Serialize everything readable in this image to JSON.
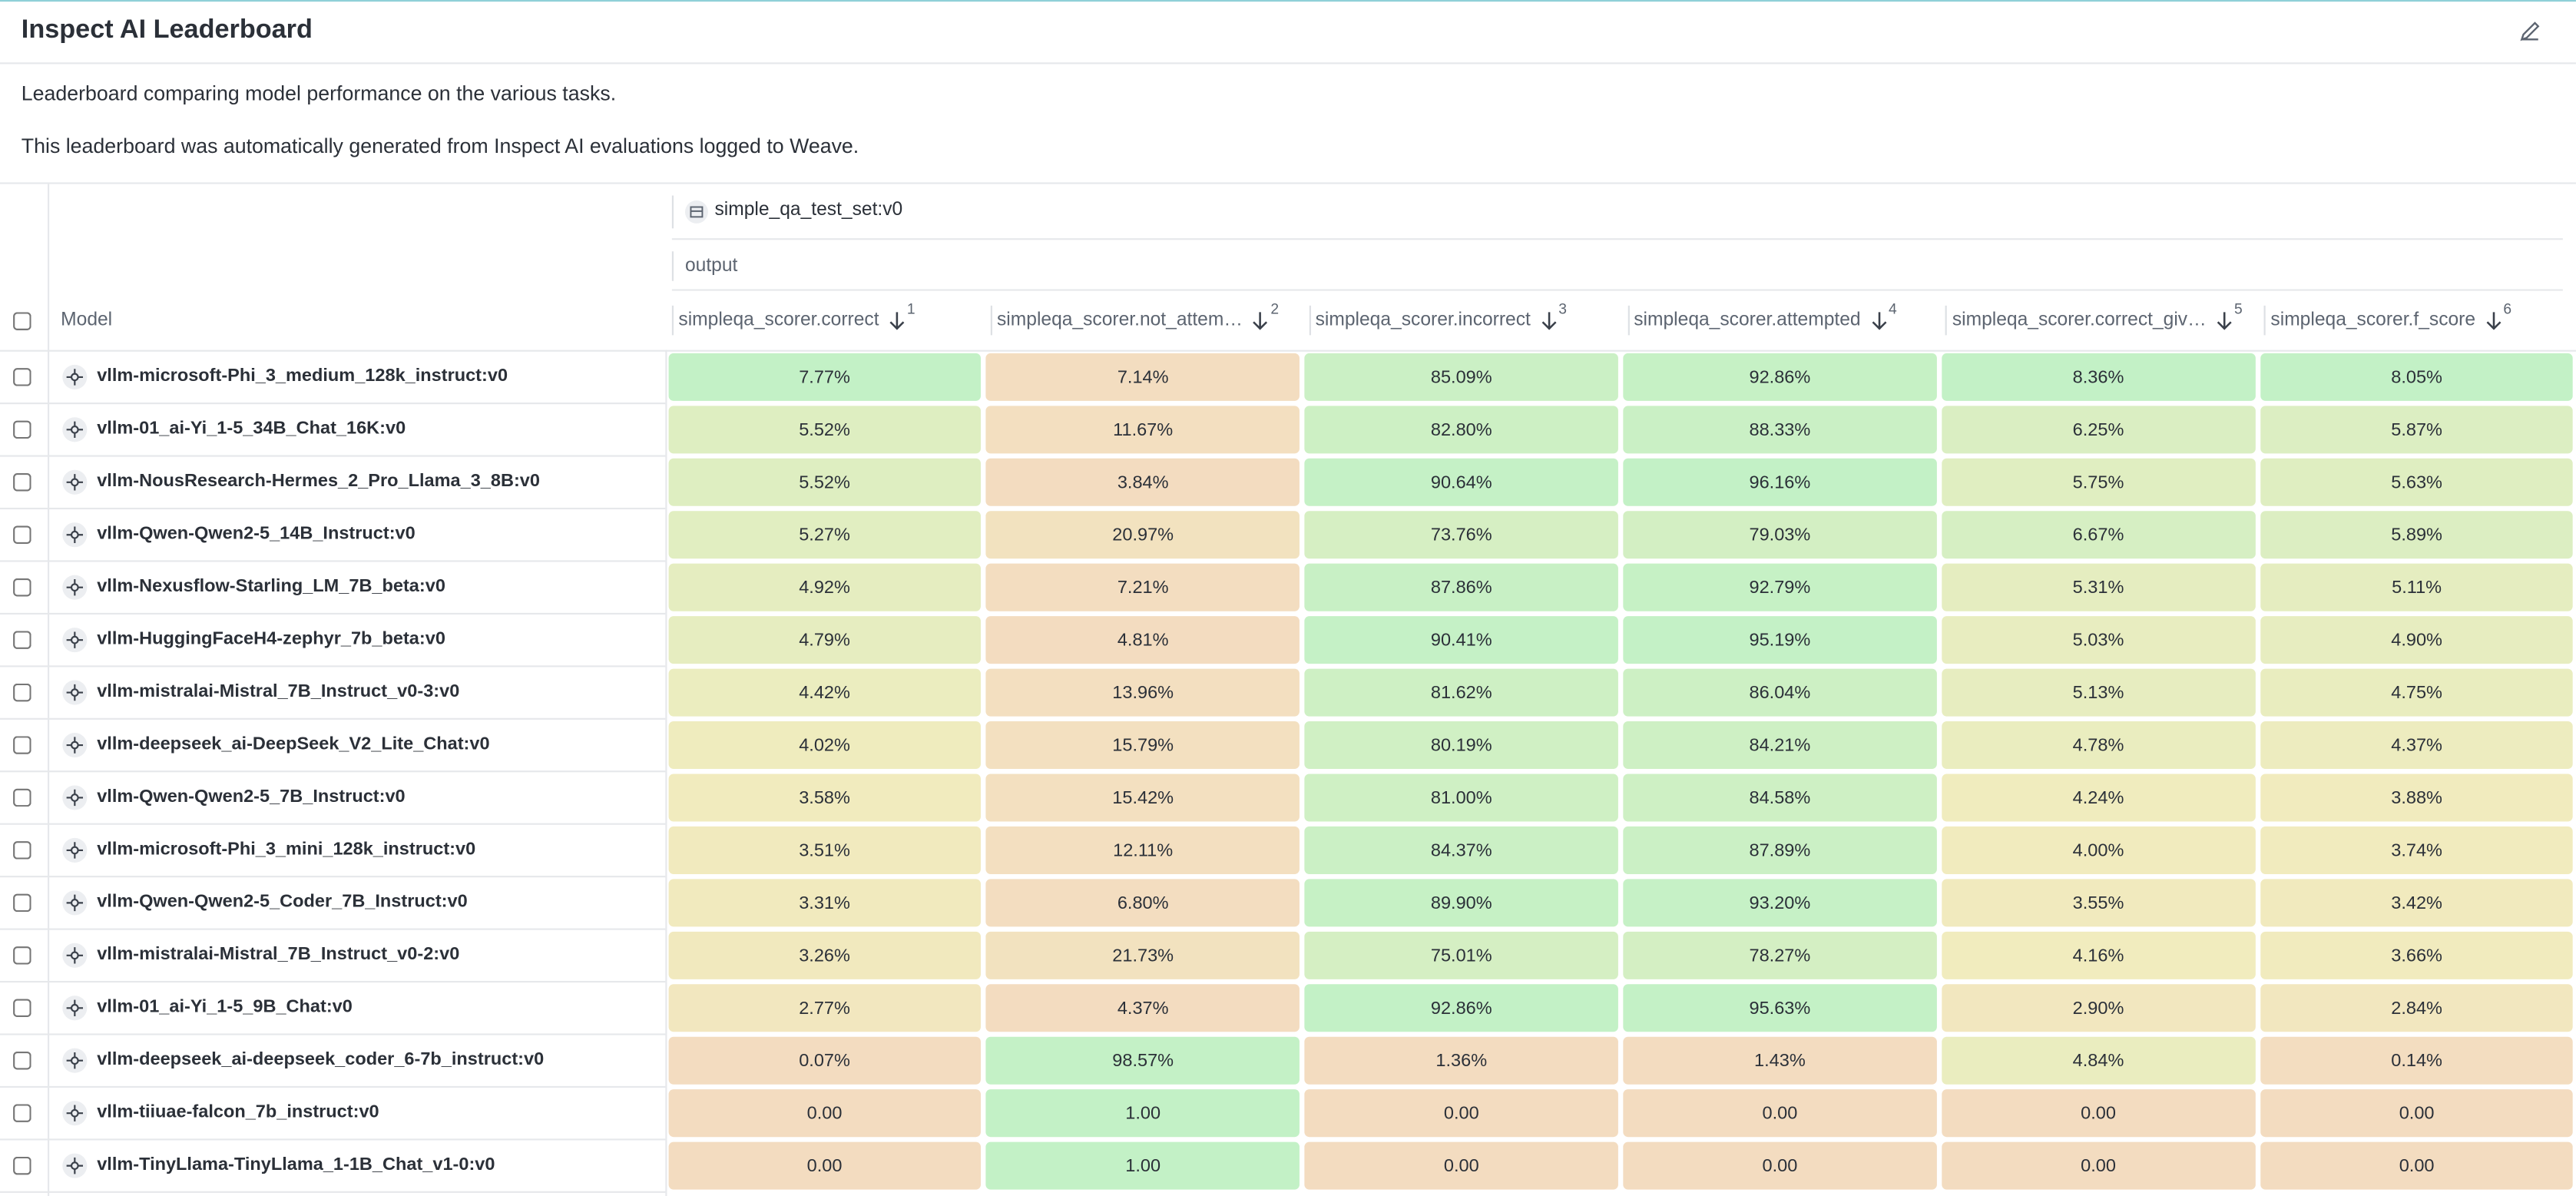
{
  "header": {
    "title": "Inspect AI Leaderboard"
  },
  "description": [
    "Leaderboard comparing model performance on the various tasks.",
    "This leaderboard was automatically generated from Inspect AI evaluations logged to Weave."
  ],
  "table": {
    "dataset": "simple_qa_test_set:v0",
    "group": "output",
    "model_header": "Model",
    "columns": [
      {
        "label": "simpleqa_scorer.correct",
        "sort_rank": 1
      },
      {
        "label": "simpleqa_scorer.not_attem…",
        "sort_rank": 2
      },
      {
        "label": "simpleqa_scorer.incorrect",
        "sort_rank": 3
      },
      {
        "label": "simpleqa_scorer.attempted",
        "sort_rank": 4
      },
      {
        "label": "simpleqa_scorer.correct_giv…",
        "sort_rank": 5
      },
      {
        "label": "simpleqa_scorer.f_score",
        "sort_rank": 6
      }
    ],
    "rows": [
      {
        "model": "vllm-microsoft-Phi_3_medium_128k_instruct:v0",
        "cells": [
          "7.77%",
          "7.14%",
          "85.09%",
          "92.86%",
          "8.36%",
          "8.05%"
        ]
      },
      {
        "model": "vllm-01_ai-Yi_1-5_34B_Chat_16K:v0",
        "cells": [
          "5.52%",
          "11.67%",
          "82.80%",
          "88.33%",
          "6.25%",
          "5.87%"
        ]
      },
      {
        "model": "vllm-NousResearch-Hermes_2_Pro_Llama_3_8B:v0",
        "cells": [
          "5.52%",
          "3.84%",
          "90.64%",
          "96.16%",
          "5.75%",
          "5.63%"
        ]
      },
      {
        "model": "vllm-Qwen-Qwen2-5_14B_Instruct:v0",
        "cells": [
          "5.27%",
          "20.97%",
          "73.76%",
          "79.03%",
          "6.67%",
          "5.89%"
        ]
      },
      {
        "model": "vllm-Nexusflow-Starling_LM_7B_beta:v0",
        "cells": [
          "4.92%",
          "7.21%",
          "87.86%",
          "92.79%",
          "5.31%",
          "5.11%"
        ]
      },
      {
        "model": "vllm-HuggingFaceH4-zephyr_7b_beta:v0",
        "cells": [
          "4.79%",
          "4.81%",
          "90.41%",
          "95.19%",
          "5.03%",
          "4.90%"
        ]
      },
      {
        "model": "vllm-mistralai-Mistral_7B_Instruct_v0-3:v0",
        "cells": [
          "4.42%",
          "13.96%",
          "81.62%",
          "86.04%",
          "5.13%",
          "4.75%"
        ]
      },
      {
        "model": "vllm-deepseek_ai-DeepSeek_V2_Lite_Chat:v0",
        "cells": [
          "4.02%",
          "15.79%",
          "80.19%",
          "84.21%",
          "4.78%",
          "4.37%"
        ]
      },
      {
        "model": "vllm-Qwen-Qwen2-5_7B_Instruct:v0",
        "cells": [
          "3.58%",
          "15.42%",
          "81.00%",
          "84.58%",
          "4.24%",
          "3.88%"
        ]
      },
      {
        "model": "vllm-microsoft-Phi_3_mini_128k_instruct:v0",
        "cells": [
          "3.51%",
          "12.11%",
          "84.37%",
          "87.89%",
          "4.00%",
          "3.74%"
        ]
      },
      {
        "model": "vllm-Qwen-Qwen2-5_Coder_7B_Instruct:v0",
        "cells": [
          "3.31%",
          "6.80%",
          "89.90%",
          "93.20%",
          "3.55%",
          "3.42%"
        ]
      },
      {
        "model": "vllm-mistralai-Mistral_7B_Instruct_v0-2:v0",
        "cells": [
          "3.26%",
          "21.73%",
          "75.01%",
          "78.27%",
          "4.16%",
          "3.66%"
        ]
      },
      {
        "model": "vllm-01_ai-Yi_1-5_9B_Chat:v0",
        "cells": [
          "2.77%",
          "4.37%",
          "92.86%",
          "95.63%",
          "2.90%",
          "2.84%"
        ]
      },
      {
        "model": "vllm-deepseek_ai-deepseek_coder_6-7b_instruct:v0",
        "cells": [
          "0.07%",
          "98.57%",
          "1.36%",
          "1.43%",
          "4.84%",
          "0.14%"
        ]
      },
      {
        "model": "vllm-tiiuae-falcon_7b_instruct:v0",
        "cells": [
          "0.00",
          "1.00",
          "0.00",
          "0.00",
          "0.00",
          "0.00"
        ]
      },
      {
        "model": "vllm-TinyLlama-TinyLlama_1-1B_Chat_v1-0:v0",
        "cells": [
          "0.00",
          "1.00",
          "0.00",
          "0.00",
          "0.00",
          "0.00"
        ]
      }
    ]
  }
}
